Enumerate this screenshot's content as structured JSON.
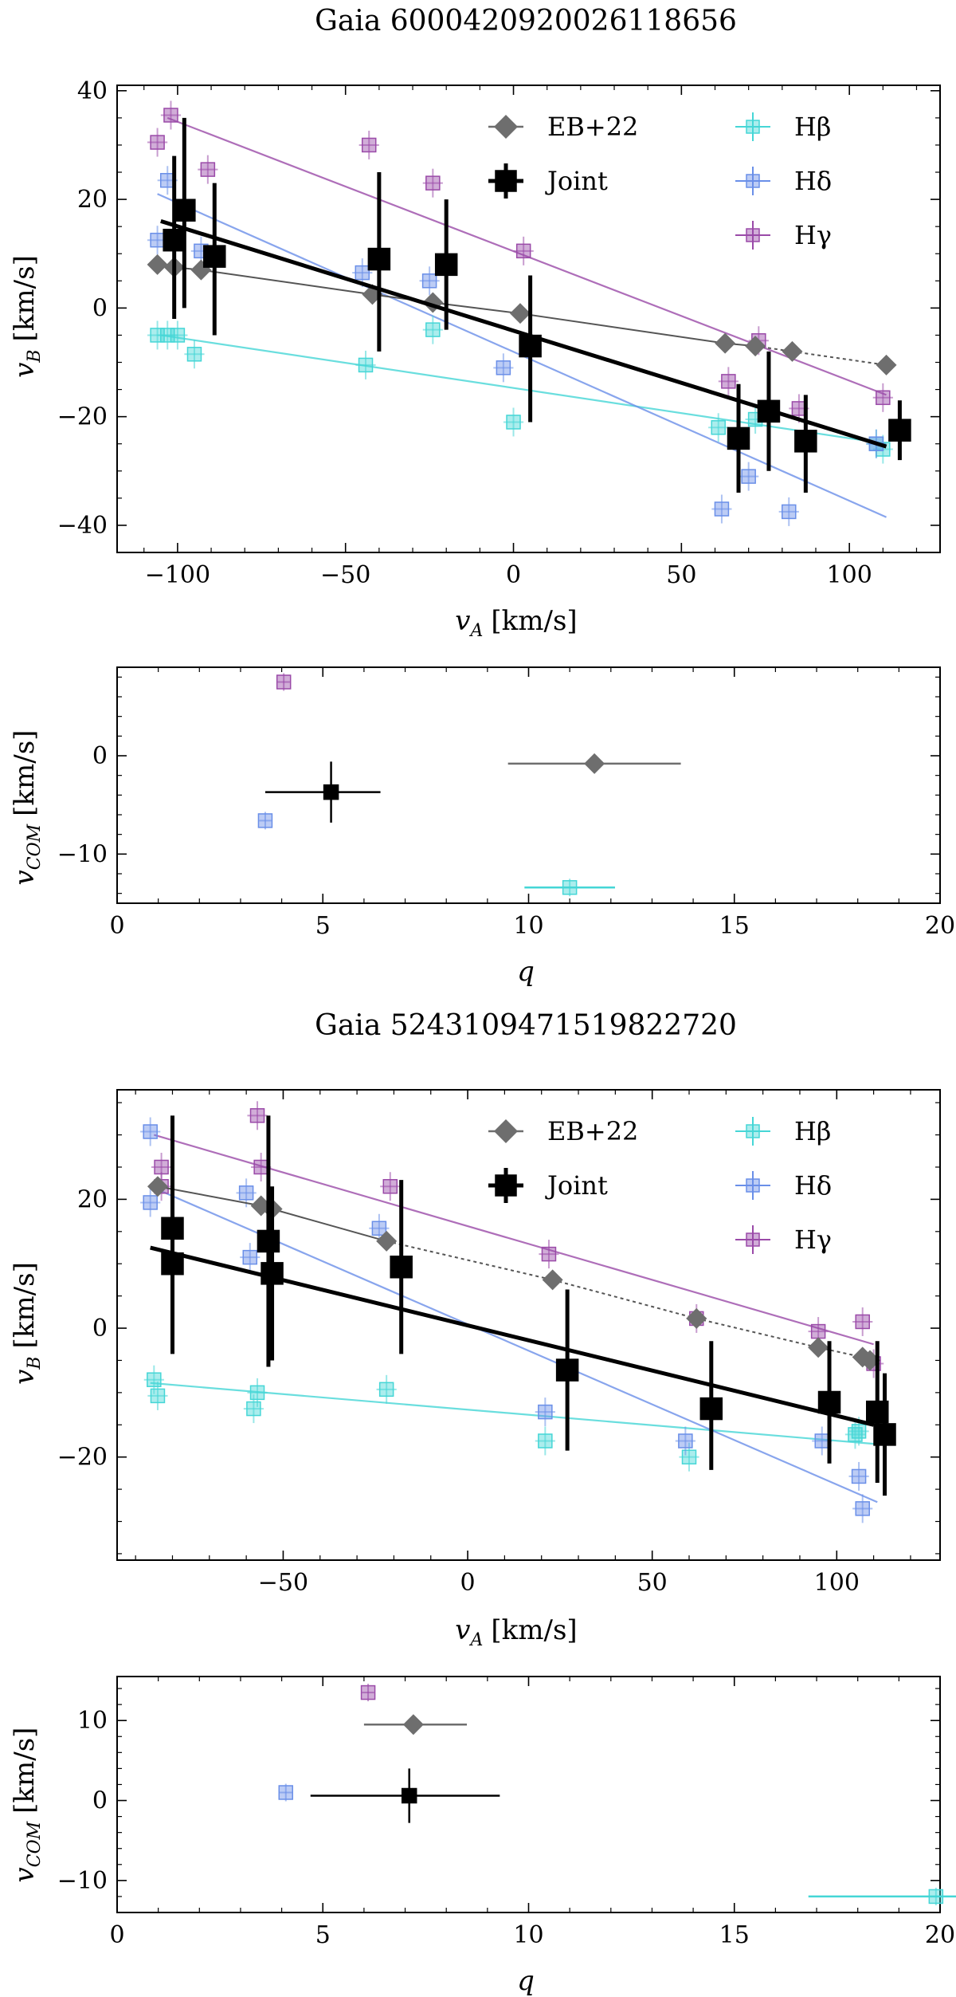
{
  "colors": {
    "ebl": "#6e6e6e",
    "joint": "#000000",
    "hbeta": "#45d6d6",
    "hdelta": "#6a8fe8",
    "hgamma": "#9a4aa8"
  },
  "chart_data": [
    {
      "type": "scatter",
      "title": "Gaia 6000420920026118656",
      "xlabel": "v_A [km/s]",
      "ylabel": "v_B [km/s]",
      "xlim": [
        -118,
        127
      ],
      "ylim": [
        -45,
        41
      ],
      "xticks": [
        -100,
        -50,
        0,
        50,
        100
      ],
      "yticks": [
        -40,
        -20,
        0,
        20,
        40
      ],
      "legend": [
        {
          "label": "EB+22",
          "series": "ebl"
        },
        {
          "label": "Joint",
          "series": "joint"
        },
        {
          "label": "Hβ",
          "series": "hbeta"
        },
        {
          "label": "Hδ",
          "series": "hdelta"
        },
        {
          "label": "Hγ",
          "series": "hgamma"
        }
      ],
      "legend_position": "top-right",
      "series": {
        "ebl": {
          "points": [
            [
              -106,
              8
            ],
            [
              -101,
              7.5
            ],
            [
              -93,
              7
            ],
            [
              -42,
              2.5
            ],
            [
              -24,
              1
            ],
            [
              2,
              -1
            ],
            [
              63,
              -6.5
            ],
            [
              72,
              -7
            ],
            [
              83,
              -8
            ],
            [
              111,
              -10.5
            ]
          ],
          "dashed_from": 8
        },
        "joint": {
          "points": [
            [
              -101,
              12.5,
              -2,
              28
            ],
            [
              -98,
              18,
              0,
              35
            ],
            [
              -89,
              9.5,
              -5,
              23
            ],
            [
              -40,
              9,
              -8,
              25
            ],
            [
              -20,
              8,
              -4,
              20
            ],
            [
              5,
              -7,
              -21,
              6
            ],
            [
              67,
              -24,
              -34,
              -14
            ],
            [
              76,
              -19,
              -30,
              -8
            ],
            [
              87,
              -24.5,
              -34,
              -16
            ],
            [
              115,
              -22.5,
              -28,
              -17
            ]
          ],
          "fit": [
            [
              -105,
              16
            ],
            [
              111,
              -25.5
            ]
          ]
        },
        "hbeta": {
          "points": [
            [
              -106,
              -5
            ],
            [
              -103,
              -5
            ],
            [
              -100,
              -5
            ],
            [
              -95,
              -8.5
            ],
            [
              -44,
              -10.5
            ],
            [
              -24,
              -4
            ],
            [
              0,
              -21
            ],
            [
              61,
              -22
            ],
            [
              72,
              -20.5
            ],
            [
              108,
              -25
            ],
            [
              110,
              -26
            ]
          ],
          "fit": [
            [
              -105,
              -5
            ],
            [
              111,
              -25
            ]
          ]
        },
        "hdelta": {
          "points": [
            [
              -106,
              12.5
            ],
            [
              -103,
              23.5
            ],
            [
              -93,
              10.5
            ],
            [
              -45,
              6.5
            ],
            [
              -25,
              5
            ],
            [
              -3,
              -11
            ],
            [
              62,
              -37
            ],
            [
              70,
              -31
            ],
            [
              82,
              -37.5
            ],
            [
              108,
              -25
            ]
          ],
          "fit": [
            [
              -106,
              21
            ],
            [
              111,
              -38.5
            ]
          ]
        },
        "hgamma": {
          "points": [
            [
              -106,
              30.5
            ],
            [
              -102,
              35.5
            ],
            [
              -91,
              25.5
            ],
            [
              -43,
              30
            ],
            [
              -24,
              23
            ],
            [
              3,
              10.5
            ],
            [
              64,
              -13.5
            ],
            [
              73,
              -6
            ],
            [
              85,
              -18.5
            ],
            [
              110,
              -16.5
            ]
          ],
          "fit": [
            [
              -103,
              35
            ],
            [
              111,
              -16
            ]
          ]
        }
      }
    },
    {
      "type": "scatter",
      "xlabel": "q",
      "ylabel": "v_COM [km/s]",
      "xlim": [
        0,
        20
      ],
      "ylim": [
        -15,
        9
      ],
      "xticks": [
        0,
        5,
        10,
        15,
        20
      ],
      "yticks": [
        -10,
        0
      ],
      "points": [
        {
          "series": "hgamma",
          "q": 4.05,
          "v": 7.5
        },
        {
          "series": "ebl",
          "q": 11.6,
          "v": -0.8,
          "qerr": [
            9.5,
            13.7
          ]
        },
        {
          "series": "joint",
          "q": 5.2,
          "v": -3.7,
          "qerr": [
            3.6,
            6.4
          ],
          "verr": [
            -6.8,
            -0.6
          ]
        },
        {
          "series": "hdelta",
          "q": 3.6,
          "v": -6.6
        },
        {
          "series": "hbeta",
          "q": 11.0,
          "v": -13.4,
          "qerr": [
            9.9,
            12.1
          ]
        }
      ]
    },
    {
      "type": "scatter",
      "title": "Gaia 5243109471519822720",
      "xlabel": "v_A [km/s]",
      "ylabel": "v_B [km/s]",
      "xlim": [
        -95,
        128
      ],
      "ylim": [
        -36,
        37
      ],
      "xticks": [
        -50,
        0,
        50,
        100
      ],
      "yticks": [
        -20,
        0,
        20
      ],
      "legend": [
        {
          "label": "EB+22",
          "series": "ebl"
        },
        {
          "label": "Joint",
          "series": "joint"
        },
        {
          "label": "Hβ",
          "series": "hbeta"
        },
        {
          "label": "Hδ",
          "series": "hdelta"
        },
        {
          "label": "Hγ",
          "series": "hgamma"
        }
      ],
      "legend_position": "top-right",
      "series": {
        "ebl": {
          "points": [
            [
              -84,
              22
            ],
            [
              -56,
              19
            ],
            [
              -53,
              18.5
            ],
            [
              -22,
              13.5
            ],
            [
              23,
              7.5
            ],
            [
              62,
              1.5
            ],
            [
              95,
              -3
            ],
            [
              107,
              -4.5
            ],
            [
              109,
              -5
            ]
          ],
          "dashed_from": 4
        },
        "joint": {
          "points": [
            [
              -80,
              15.5,
              -1,
              33
            ],
            [
              -80,
              10,
              -4,
              24
            ],
            [
              -54,
              13.5,
              -6,
              33
            ],
            [
              -53,
              8.5,
              -5,
              22
            ],
            [
              -18,
              9.5,
              -4,
              23
            ],
            [
              27,
              -6.5,
              -19,
              6
            ],
            [
              66,
              -12.5,
              -22,
              -2
            ],
            [
              98,
              -11.5,
              -21,
              -2
            ],
            [
              111,
              -13,
              -24,
              -2
            ],
            [
              113,
              -16.5,
              -26,
              -7
            ]
          ],
          "fit": [
            [
              -86,
              12.5
            ],
            [
              110,
              -15
            ]
          ]
        },
        "hbeta": {
          "points": [
            [
              -85,
              -8
            ],
            [
              -84,
              -10.5
            ],
            [
              -58,
              -12.5
            ],
            [
              -57,
              -10
            ],
            [
              -22,
              -9.5
            ],
            [
              21,
              -17.5
            ],
            [
              60,
              -20
            ],
            [
              105,
              -16.5
            ],
            [
              106,
              -16
            ]
          ],
          "fit": [
            [
              -86,
              -8.5
            ],
            [
              111,
              -18
            ]
          ]
        },
        "hdelta": {
          "points": [
            [
              -86,
              30.5
            ],
            [
              -86,
              19.5
            ],
            [
              -60,
              21
            ],
            [
              -59,
              11
            ],
            [
              -24,
              15.5
            ],
            [
              21,
              -13
            ],
            [
              59,
              -17.5
            ],
            [
              96,
              -17.5
            ],
            [
              106,
              -23
            ],
            [
              107,
              -28
            ]
          ],
          "fit": [
            [
              -86,
              22
            ],
            [
              111,
              -27
            ]
          ]
        },
        "hgamma": {
          "points": [
            [
              -83,
              22
            ],
            [
              -83,
              25
            ],
            [
              -57,
              33
            ],
            [
              -56,
              25
            ],
            [
              -21,
              22
            ],
            [
              22,
              11.5
            ],
            [
              62,
              1.5
            ],
            [
              95,
              -0.5
            ],
            [
              107,
              1
            ],
            [
              110,
              -5.5
            ]
          ],
          "fit": [
            [
              -85,
              30
            ],
            [
              110,
              -2.5
            ]
          ]
        }
      }
    },
    {
      "type": "scatter",
      "xlabel": "q",
      "ylabel": "v_COM [km/s]",
      "xlim": [
        0,
        20
      ],
      "ylim": [
        -14,
        15.5
      ],
      "xticks": [
        0,
        5,
        10,
        15,
        20
      ],
      "yticks": [
        -10,
        0,
        10
      ],
      "points": [
        {
          "series": "hgamma",
          "q": 6.1,
          "v": 13.5
        },
        {
          "series": "ebl",
          "q": 7.2,
          "v": 9.5,
          "qerr": [
            6.0,
            8.5
          ]
        },
        {
          "series": "joint",
          "q": 7.1,
          "v": 0.6,
          "qerr": [
            4.7,
            9.3
          ],
          "verr": [
            -2.8,
            4.0
          ]
        },
        {
          "series": "hdelta",
          "q": 4.1,
          "v": 1.0
        },
        {
          "series": "hbeta",
          "q": 19.9,
          "v": -12.0,
          "qerr": [
            16.8,
            20.5
          ]
        }
      ]
    }
  ]
}
